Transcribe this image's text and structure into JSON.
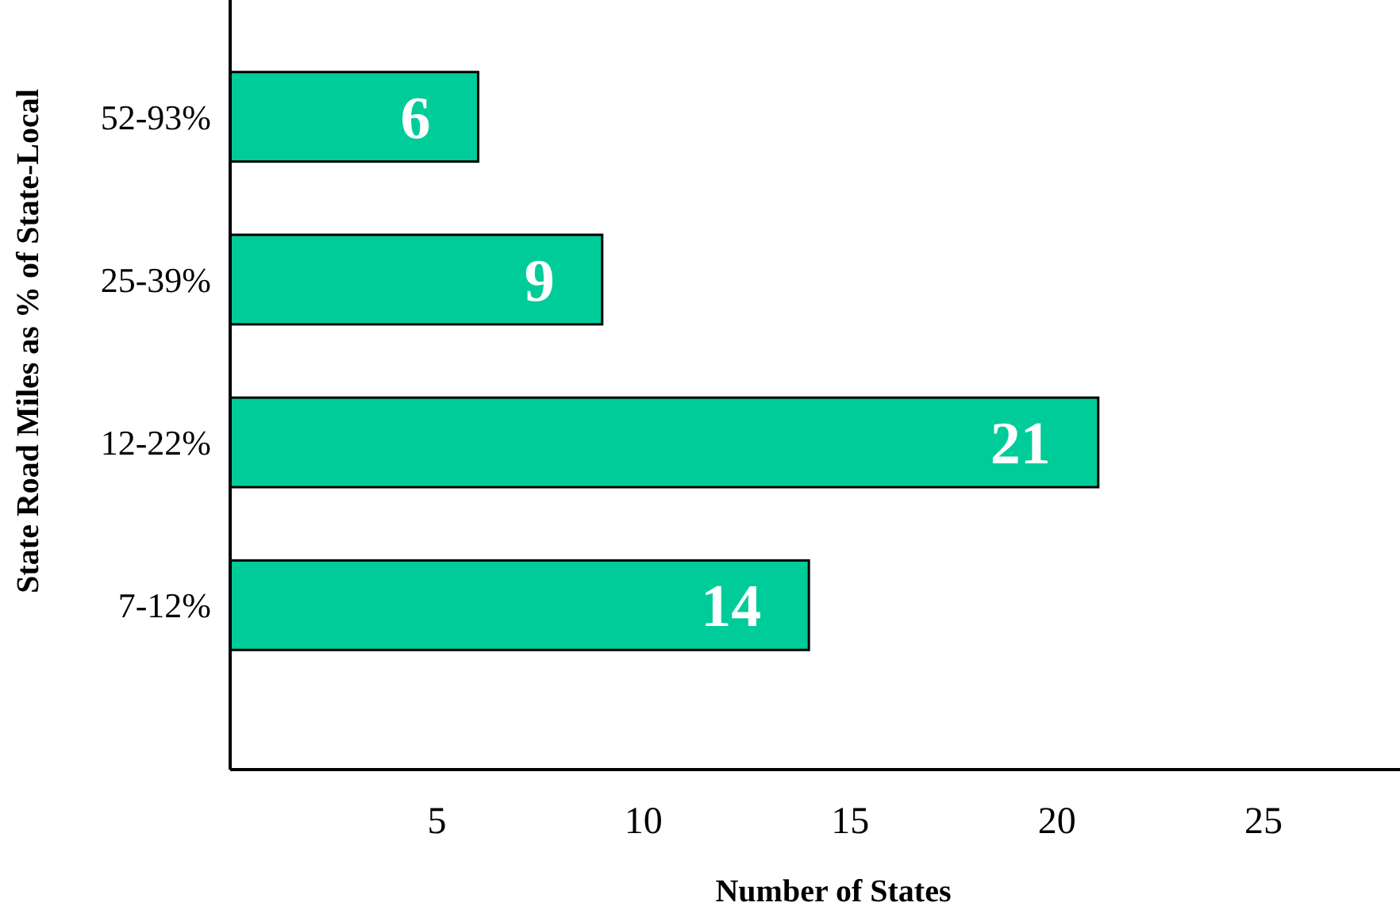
{
  "chart_data": {
    "type": "bar",
    "orientation": "horizontal",
    "categories": [
      "52-93%",
      "25-39%",
      "12-22%",
      "7-12%"
    ],
    "values": [
      6,
      9,
      21,
      14
    ],
    "color": "#00cc99",
    "data_labels": true,
    "xlim": [
      0,
      28.3
    ],
    "xticks": [
      5,
      10,
      15,
      20,
      25
    ],
    "xlabel": "Number of States",
    "ylabel": "State Road Miles as % of State-Local",
    "grid": false
  }
}
